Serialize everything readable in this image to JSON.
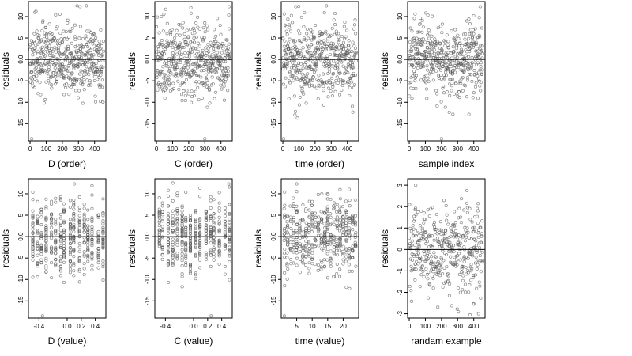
{
  "figure": {
    "type": "scatter",
    "grid": false,
    "ylabel": "residuals",
    "colors": {
      "points": "#555555",
      "axes": "#000000",
      "background": "#ffffff"
    }
  },
  "chart_data": [
    {
      "type": "scatter",
      "xlabel": "D (order)",
      "ylabel": "residuals",
      "xlim": [
        -10,
        470
      ],
      "ylim": [
        -19,
        13.5
      ],
      "xticks": [
        0,
        100,
        200,
        300,
        400
      ],
      "xtick_labels": [
        "0",
        "100",
        "200",
        "300",
        "400"
      ],
      "yticks": [
        -15,
        -10,
        -5,
        0,
        5,
        10
      ],
      "ytick_labels": [
        "-15",
        "-10",
        "-5",
        "0.0",
        "5",
        "10"
      ],
      "n_points": 460,
      "reference_line_y": 0,
      "outliers": [
        {
          "x": 10,
          "y": -18.5
        },
        {
          "x": 310,
          "y": 12.3
        }
      ]
    },
    {
      "type": "scatter",
      "xlabel": "C (order)",
      "ylabel": "residuals",
      "xlim": [
        -10,
        470
      ],
      "ylim": [
        -19,
        13.5
      ],
      "xticks": [
        0,
        100,
        200,
        300,
        400
      ],
      "xtick_labels": [
        "0",
        "100",
        "200",
        "300",
        "400"
      ],
      "yticks": [
        -15,
        -10,
        -5,
        0,
        5,
        10
      ],
      "ytick_labels": [
        "-15",
        "-10",
        "-5",
        "0.0",
        "5",
        "10"
      ],
      "n_points": 460,
      "reference_line_y": 0,
      "outliers": [
        {
          "x": 300,
          "y": -18.5
        },
        {
          "x": 450,
          "y": 12.3
        }
      ]
    },
    {
      "type": "scatter",
      "xlabel": "time (order)",
      "ylabel": "residuals",
      "xlim": [
        -10,
        470
      ],
      "ylim": [
        -19,
        13.5
      ],
      "xticks": [
        0,
        100,
        200,
        300,
        400
      ],
      "xtick_labels": [
        "0",
        "100",
        "200",
        "300",
        "400"
      ],
      "yticks": [
        -15,
        -10,
        -5,
        0,
        5,
        10
      ],
      "ytick_labels": [
        "-15",
        "-10",
        "-5",
        "0.0",
        "5",
        "10"
      ],
      "n_points": 460,
      "reference_line_y": 0,
      "outliers": [
        {
          "x": 5,
          "y": -18.5
        },
        {
          "x": 80,
          "y": 12.3
        }
      ]
    },
    {
      "type": "scatter",
      "xlabel": "sample index",
      "ylabel": "residuals",
      "xlim": [
        -10,
        470
      ],
      "ylim": [
        -19,
        13.5
      ],
      "xticks": [
        0,
        100,
        200,
        300,
        400
      ],
      "xtick_labels": [
        "0",
        "100",
        "200",
        "300",
        "400"
      ],
      "yticks": [
        -15,
        -10,
        -5,
        0,
        5,
        10
      ],
      "ytick_labels": [
        "-15",
        "-10",
        "-5",
        "0.0",
        "5",
        "10"
      ],
      "n_points": 460,
      "reference_line_y": 0,
      "outliers": [
        {
          "x": 200,
          "y": -18.5
        },
        {
          "x": 440,
          "y": 12.3
        }
      ]
    },
    {
      "type": "scatter",
      "xlabel": "D (value)",
      "ylabel": "residuals",
      "xlim": [
        -0.55,
        0.55
      ],
      "ylim": [
        -19,
        13.5
      ],
      "xticks": [
        -0.4,
        0.0,
        0.2,
        0.4
      ],
      "xtick_labels": [
        "-0.4",
        "0.0",
        "0.2",
        "0.4"
      ],
      "yticks": [
        -15,
        -10,
        -5,
        0,
        5,
        10
      ],
      "ytick_labels": [
        "-15",
        "-10",
        "-5",
        "0.0",
        "5",
        "10"
      ],
      "n_points": 460,
      "reference_line_y": 0,
      "outliers": [
        {
          "x": -0.35,
          "y": -18.5
        },
        {
          "x": 0.1,
          "y": 12.3
        }
      ]
    },
    {
      "type": "scatter",
      "xlabel": "C (value)",
      "ylabel": "residuals",
      "xlim": [
        -0.55,
        0.55
      ],
      "ylim": [
        -19,
        13.5
      ],
      "xticks": [
        -0.4,
        0.0,
        0.2,
        0.4
      ],
      "xtick_labels": [
        "-0.4",
        "0.0",
        "0.2",
        "0.4"
      ],
      "yticks": [
        -15,
        -10,
        -5,
        0,
        5,
        10
      ],
      "ytick_labels": [
        "-15",
        "-10",
        "-5",
        "0.0",
        "5",
        "10"
      ],
      "n_points": 460,
      "reference_line_y": 0,
      "outliers": [
        {
          "x": 0.25,
          "y": -18.5
        },
        {
          "x": 0.5,
          "y": 12.3
        }
      ]
    },
    {
      "type": "scatter",
      "xlabel": "time (value)",
      "ylabel": "residuals",
      "xlim": [
        0,
        25
      ],
      "ylim": [
        -19,
        13.5
      ],
      "xticks": [
        5,
        10,
        15,
        20
      ],
      "xtick_labels": [
        "5",
        "10",
        "15",
        "20"
      ],
      "yticks": [
        -15,
        -10,
        -5,
        0,
        5,
        10
      ],
      "ytick_labels": [
        "-15",
        "-10",
        "-5",
        "0.0",
        "5",
        "10"
      ],
      "n_points": 460,
      "reference_line_y": 0,
      "outliers": [
        {
          "x": 1,
          "y": -18.5
        },
        {
          "x": 5,
          "y": 12.3
        }
      ]
    },
    {
      "type": "scatter",
      "xlabel": "randam example",
      "ylabel": "residuals",
      "xlim": [
        -10,
        470
      ],
      "ylim": [
        -3.2,
        3.3
      ],
      "xticks": [
        0,
        100,
        200,
        300,
        400
      ],
      "xtick_labels": [
        "0",
        "100",
        "200",
        "300",
        "400"
      ],
      "yticks": [
        -3,
        -2,
        -1,
        0,
        1,
        2,
        3
      ],
      "ytick_labels": [
        "-3",
        "-2",
        "-1",
        "0",
        "1",
        "2",
        "3"
      ],
      "n_points": 400,
      "reference_line_y": 0,
      "outliers": [
        {
          "x": 40,
          "y": 3.0
        },
        {
          "x": 430,
          "y": -3.0
        }
      ]
    }
  ]
}
